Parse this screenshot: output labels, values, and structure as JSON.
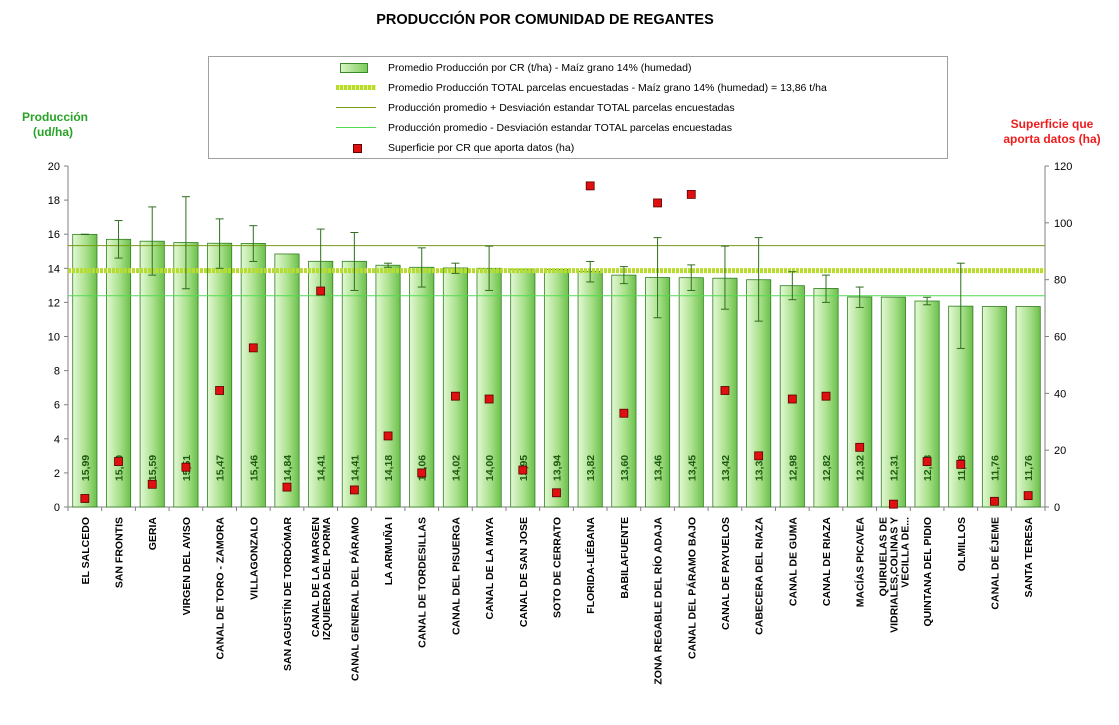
{
  "chart_data": {
    "type": "bar",
    "title": "PRODUCCIÓN POR COMUNIDAD DE REGANTES",
    "ylabel": "Producción (ud/ha)",
    "y2label": "Superficie que aporta datos (ha)",
    "ylim": [
      0,
      20
    ],
    "y2lim": [
      0,
      120
    ],
    "yticks": [
      0,
      2,
      4,
      6,
      8,
      10,
      12,
      14,
      16,
      18,
      20
    ],
    "y2ticks": [
      0,
      20,
      40,
      60,
      80,
      100,
      120
    ],
    "grid": false,
    "legend_position": "top",
    "categories": [
      "EL SALCEDO",
      "SAN FRONTIS",
      "GERIA",
      "VIRGEN DEL AVISO",
      "CANAL DE TORO - ZAMORA",
      "VILLAGONZALO",
      "SAN AGUSTÍN DE TORDÓMAR",
      "CANAL DE LA MARGEN IZQUIERDA DEL PORMA",
      "CANAL GENERAL DEL PÁRAMO",
      "LA ARMUÑA I",
      "CANAL DE TORDESILLAS",
      "CANAL DEL PISUERGA",
      "CANAL DE LA MAYA",
      "CANAL DE SAN JOSE",
      "SOTO DE CERRATO",
      "FLORIDA-LIÉBANA",
      "BABILAFUENTE",
      "ZONA REGABLE DEL RÍO ADAJA",
      "CANAL DEL PÁRAMO BAJO",
      "CANAL DE PAYUELOS",
      "CABECERA DEL RIAZA",
      "CANAL DE GUMA",
      "CANAL DE RIAZA",
      "MACÍAS PICAVEA",
      "QUIRUELAS DE VIDRIALES,COLINAS Y VECILLA DE...",
      "QUINTANA DEL PIDIO",
      "OLMILLOS",
      "CANAL DE ÉJEME",
      "SANTA TERESA"
    ],
    "series": [
      {
        "name": "Promedio Producción por CR (t/ha) - Maíz grano 14% (humedad)",
        "type": "bar",
        "color": "#a8e08a",
        "values": [
          15.99,
          15.7,
          15.59,
          15.51,
          15.47,
          15.46,
          14.84,
          14.41,
          14.41,
          14.18,
          14.06,
          14.02,
          14.0,
          13.95,
          13.94,
          13.82,
          13.6,
          13.46,
          13.45,
          13.42,
          13.33,
          12.98,
          12.82,
          12.32,
          12.31,
          12.08,
          11.78,
          11.76,
          11.76
        ],
        "labels": [
          "15,99",
          "15,70",
          "15,59",
          "15,51",
          "15,47",
          "15,46",
          "14,84",
          "14,41",
          "14,41",
          "14,18",
          "14,06",
          "14,02",
          "14,00",
          "13,95",
          "13,94",
          "13,82",
          "13,60",
          "13,46",
          "13,45",
          "13,42",
          "13,33",
          "12,98",
          "12,82",
          "12,32",
          "12,31",
          "12,08",
          "11,78",
          "11,76",
          "11,76"
        ],
        "error_high": [
          16.0,
          16.8,
          17.6,
          18.2,
          16.9,
          16.5,
          14.84,
          16.3,
          16.1,
          14.3,
          15.2,
          14.3,
          15.3,
          13.95,
          13.94,
          14.4,
          14.1,
          15.8,
          14.2,
          15.3,
          15.8,
          13.8,
          13.6,
          12.9,
          12.31,
          12.3,
          14.3,
          11.76,
          11.76
        ],
        "error_low": [
          15.98,
          14.6,
          13.6,
          12.8,
          14.0,
          14.4,
          14.84,
          12.5,
          12.7,
          14.06,
          12.9,
          13.7,
          12.7,
          13.95,
          13.94,
          13.2,
          13.1,
          11.1,
          12.7,
          11.6,
          10.9,
          12.16,
          12.0,
          11.7,
          12.31,
          11.86,
          9.3,
          11.76,
          11.76
        ]
      },
      {
        "name": "Superficie por CR que aporta datos (ha)",
        "type": "scatter",
        "axis": "right",
        "color": "#e01010",
        "values": [
          3,
          16,
          8,
          14,
          41,
          56,
          7,
          76,
          6,
          25,
          12,
          39,
          38,
          13,
          5,
          113,
          33,
          107,
          110,
          41,
          18,
          38,
          39,
          21,
          1,
          16,
          15,
          2,
          4
        ]
      }
    ],
    "reference_lines": [
      {
        "name": "Promedio Producción TOTAL parcelas encuestadas - Maíz grano 14% (humedad) = 13,86 t/ha",
        "value": 13.86,
        "color": "#b8dc2c",
        "style": "thick-dashed"
      },
      {
        "name": "Producción promedio + Desviación estandar TOTAL parcelas encuestadas",
        "value": 15.33,
        "color": "#7a9a14",
        "style": "solid"
      },
      {
        "name": "Producción promedio - Desviación estandar TOTAL parcelas encuestadas",
        "value": 12.39,
        "color": "#52dc52",
        "style": "solid"
      }
    ]
  }
}
